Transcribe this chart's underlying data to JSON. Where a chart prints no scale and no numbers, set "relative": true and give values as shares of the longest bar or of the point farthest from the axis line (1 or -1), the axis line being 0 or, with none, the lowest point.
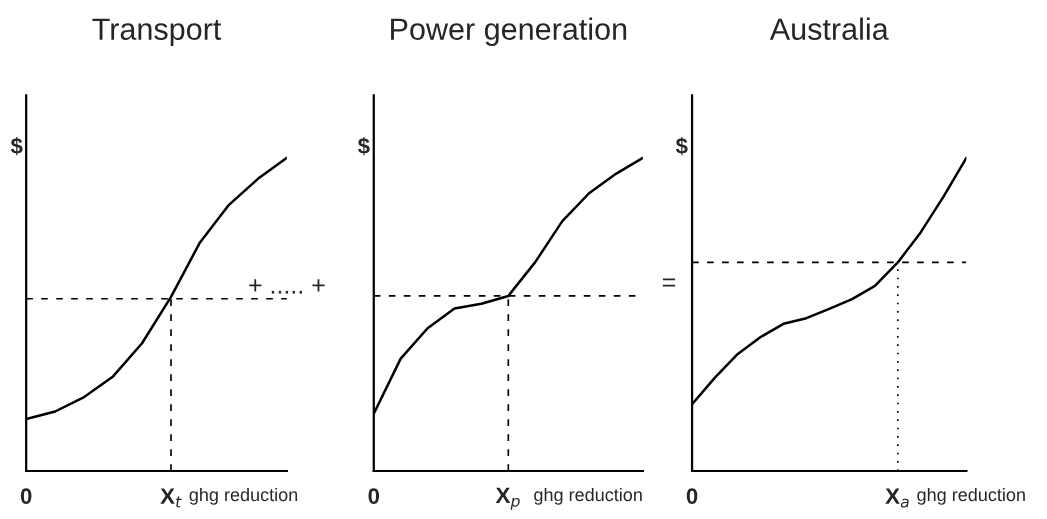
{
  "chart_data": [
    {
      "type": "line",
      "title": "Transport",
      "xlabel": "ghg reduction",
      "ylabel": "$",
      "relative": true,
      "tick_labels": "x",
      "categories": [
        "0",
        null,
        null,
        null,
        null,
        "X$_{t}$",
        null,
        null,
        null,
        null
      ],
      "series": [
        {
          "color": "#000000",
          "values": [
            0.166,
            0.19,
            0.236,
            0.302,
            0.408,
            0.556,
            0.73,
            0.85,
            0.933,
            1.0
          ]
        }
      ],
      "ref_lines": [
        {
          "axis": "y",
          "value": 0.55,
          "line_style": "dashed",
          "color": "#000000"
        },
        {
          "axis": "x",
          "value": "X$_{t}$",
          "line_style": "dashed",
          "color": "#000000"
        }
      ],
      "annotations": [
        "+ ..... +"
      ]
    },
    {
      "type": "line",
      "title": "Power generation",
      "xlabel": "ghg reduction",
      "ylabel": "$",
      "relative": true,
      "tick_labels": "x",
      "categories": [
        "0",
        null,
        null,
        null,
        null,
        "X$_{p}$",
        null,
        null,
        null,
        null,
        null
      ],
      "series": [
        {
          "color": "#000000",
          "values": [
            0.183,
            0.359,
            0.456,
            0.519,
            0.534,
            0.559,
            0.667,
            0.797,
            0.887,
            0.949,
            1.0
          ]
        }
      ],
      "ref_lines": [
        {
          "axis": "y",
          "value": 0.559,
          "line_style": "dashed",
          "color": "#000000"
        },
        {
          "axis": "x",
          "value": "X$_{p}$",
          "line_style": "dashed",
          "color": "#000000"
        }
      ],
      "annotations": [
        "="
      ]
    },
    {
      "type": "line",
      "title": "Australia",
      "xlabel": "ghg reduction",
      "ylabel": "$",
      "relative": true,
      "tick_labels": "x",
      "categories": [
        "0",
        null,
        null,
        null,
        null,
        null,
        null,
        null,
        null,
        "X$_{a}$",
        null,
        null,
        null
      ],
      "series": [
        {
          "color": "#000000",
          "values": [
            0.213,
            0.298,
            0.374,
            0.428,
            0.47,
            0.488,
            0.518,
            0.549,
            0.591,
            0.666,
            0.762,
            0.876,
            1.0
          ]
        }
      ],
      "ref_lines": [
        {
          "axis": "y",
          "value": 0.666,
          "line_style": "dashed",
          "color": "#000000"
        },
        {
          "axis": "x",
          "value": "X$_{a}$",
          "line_style": "dotted",
          "color": "#000000"
        }
      ]
    }
  ]
}
